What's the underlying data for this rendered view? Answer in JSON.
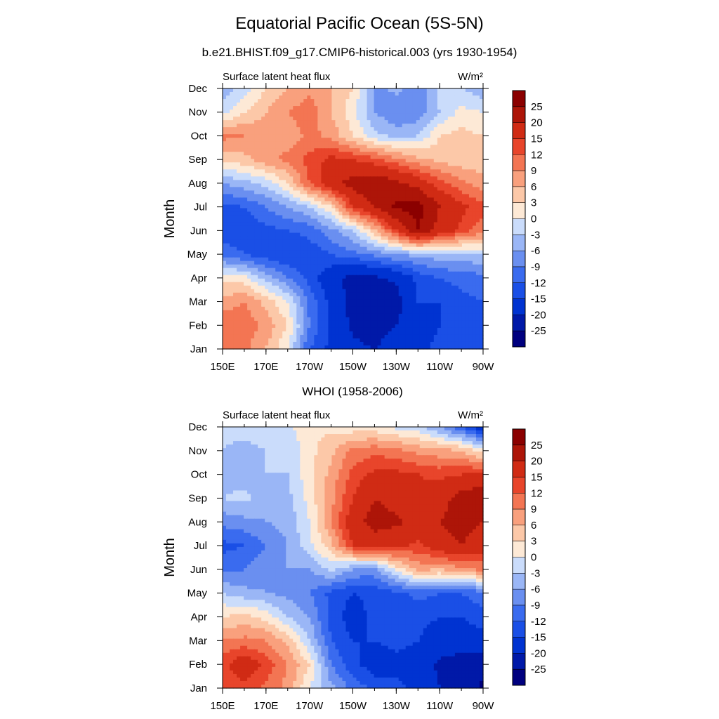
{
  "title": "Equatorial Pacific Ocean (5S-5N)",
  "subtitle": "b.e21.BHIST.f09_g17.CMIP6-historical.003 (yrs 1930-1954)",
  "panel2_title": "WHOI (1958-2006)",
  "chart_data": [
    {
      "type": "heatmap",
      "title": "",
      "left_label": "Surface latent heat flux",
      "units_label": "W/m²",
      "xlabel": "",
      "ylabel": "Month",
      "x_tick_labels": [
        "150E",
        "170E",
        "170W",
        "150W",
        "130W",
        "110W",
        "90W"
      ],
      "x": [
        150,
        160,
        170,
        180,
        190,
        200,
        210,
        220,
        230,
        240,
        250,
        260,
        270
      ],
      "x_units": "degrees east (150E to 90W)",
      "y_tick_labels": [
        "Jan",
        "Feb",
        "Mar",
        "Apr",
        "May",
        "Jun",
        "Jul",
        "Aug",
        "Sep",
        "Oct",
        "Nov",
        "Dec"
      ],
      "levels": [
        -25,
        -20,
        -15,
        -12,
        -9,
        -6,
        -3,
        0,
        3,
        6,
        9,
        12,
        15,
        20,
        25
      ],
      "colors": [
        "#00007f",
        "#0019a8",
        "#0033d1",
        "#1a4fe6",
        "#3a6bef",
        "#6a8ff0",
        "#9ab6f6",
        "#cadcfb",
        "#fde9d6",
        "#fcc8a8",
        "#f9a07d",
        "#f37553",
        "#e8452b",
        "#d02b14",
        "#ad1508",
        "#8b0000"
      ],
      "values": [
        [
          9,
          10,
          6,
          0,
          -12,
          -16,
          -19,
          -20,
          -18,
          -16,
          -14,
          -13,
          -12
        ],
        [
          12,
          11,
          8,
          3,
          -9,
          -16,
          -21,
          -22,
          -20,
          -17,
          -15,
          -13,
          -12
        ],
        [
          7,
          9,
          5,
          0,
          -10,
          -16,
          -22,
          -24,
          -22,
          -15,
          -15,
          -13,
          -12
        ],
        [
          2,
          1,
          -4,
          -9,
          -13,
          -18,
          -22,
          -21,
          -19,
          -14,
          -12,
          -11,
          -10
        ],
        [
          -10,
          -12,
          -14,
          -15,
          -14,
          -12,
          -10,
          -8,
          -6,
          -5,
          -4,
          -4,
          -3
        ],
        [
          -14,
          -14,
          -13,
          -12,
          -11,
          -7,
          -3,
          5,
          15,
          25,
          18,
          14,
          10
        ],
        [
          -13,
          -12,
          -9,
          -6,
          -3,
          3,
          15,
          20,
          26,
          27,
          20,
          16,
          13
        ],
        [
          -6,
          -4,
          -2,
          3,
          12,
          18,
          22,
          24,
          21,
          18,
          13,
          10,
          7
        ],
        [
          4,
          5,
          8,
          10,
          13,
          16,
          15,
          13,
          10,
          7,
          5,
          4,
          4
        ],
        [
          10,
          9,
          8,
          7,
          10,
          8,
          3,
          -2,
          -4,
          -3,
          3,
          4,
          3
        ],
        [
          -1,
          3,
          6,
          9,
          11,
          6,
          1,
          -6,
          -9,
          -8,
          -3,
          1,
          0
        ],
        [
          -5,
          -2,
          3,
          6,
          8,
          6,
          3,
          -7,
          -5,
          -8,
          -2,
          -3,
          -5
        ]
      ]
    },
    {
      "type": "heatmap",
      "title": "WHOI (1958-2006)",
      "left_label": "Surface latent heat flux",
      "units_label": "W/m²",
      "xlabel": "",
      "ylabel": "Month",
      "x_tick_labels": [
        "150E",
        "170E",
        "170W",
        "150W",
        "130W",
        "110W",
        "90W"
      ],
      "x": [
        150,
        160,
        170,
        180,
        190,
        200,
        210,
        220,
        230,
        240,
        250,
        260,
        270
      ],
      "x_units": "degrees east (150E to 90W)",
      "y_tick_labels": [
        "Jan",
        "Feb",
        "Mar",
        "Apr",
        "May",
        "Jun",
        "Jul",
        "Aug",
        "Sep",
        "Oct",
        "Nov",
        "Dec"
      ],
      "levels": [
        -25,
        -20,
        -15,
        -12,
        -9,
        -6,
        -3,
        0,
        3,
        6,
        9,
        12,
        15,
        20,
        25
      ],
      "colors": [
        "#00007f",
        "#0019a8",
        "#0033d1",
        "#1a4fe6",
        "#3a6bef",
        "#6a8ff0",
        "#9ab6f6",
        "#cadcfb",
        "#fde9d6",
        "#fcc8a8",
        "#f9a07d",
        "#f37553",
        "#e8452b",
        "#d02b14",
        "#ad1508",
        "#8b0000"
      ],
      "values": [
        [
          12,
          14,
          11,
          8,
          0,
          -5,
          -10,
          -13,
          -14,
          -16,
          -20,
          -22,
          -26
        ],
        [
          14,
          18,
          14,
          9,
          3,
          -9,
          -14,
          -17,
          -16,
          -17,
          -21,
          -22,
          -23
        ],
        [
          9,
          10,
          9,
          5,
          -3,
          -12,
          -15,
          -15,
          -14,
          -15,
          -17,
          -18,
          -17
        ],
        [
          3,
          4,
          2,
          -3,
          -6,
          -13,
          -17,
          -14,
          -12,
          -14,
          -15,
          -15,
          -13
        ],
        [
          -3,
          -5,
          -6,
          -7,
          -9,
          -13,
          -15,
          -14,
          -13,
          -11,
          -12,
          -12,
          -10
        ],
        [
          -10,
          -9,
          -7,
          -6,
          -6,
          -2,
          -6,
          -7,
          1,
          7,
          6,
          8,
          10
        ],
        [
          -13,
          -12,
          -9,
          -6,
          -1,
          5,
          15,
          17,
          16,
          14,
          18,
          20,
          17
        ],
        [
          -8,
          -7,
          -6,
          -5,
          0,
          9,
          18,
          22,
          21,
          18,
          20,
          22,
          20
        ],
        [
          -3,
          -2,
          -5,
          -4,
          1,
          8,
          15,
          20,
          18,
          16,
          18,
          22,
          24
        ],
        [
          -4,
          -5,
          -3,
          -3,
          2,
          7,
          13,
          16,
          16,
          15,
          14,
          15,
          16
        ],
        [
          -3,
          -4,
          -3,
          -3,
          2,
          5,
          10,
          11,
          10,
          8,
          7,
          6,
          1
        ],
        [
          -2,
          -2,
          -1,
          -1,
          3,
          2,
          1,
          1,
          -1,
          -2,
          -6,
          -12,
          -18
        ]
      ]
    }
  ],
  "colorbar": {
    "labels": [
      "25",
      "20",
      "15",
      "12",
      "9",
      "6",
      "3",
      "0",
      "-3",
      "-6",
      "-9",
      "-12",
      "-15",
      "-20",
      "-25"
    ]
  }
}
